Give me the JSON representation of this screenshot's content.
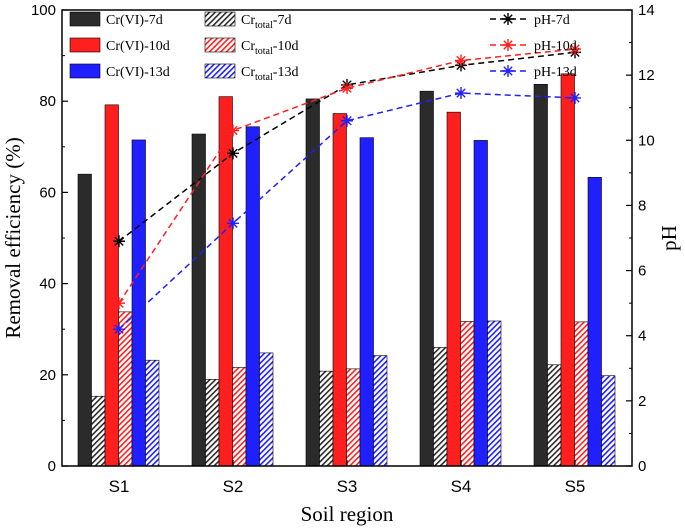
{
  "chart_data": {
    "type": "bar",
    "title": "",
    "xlabel": "Soil region",
    "ylabel": "Removal efficiency (%)",
    "y2label": "pH",
    "ylim": [
      0,
      100
    ],
    "y2lim": [
      0,
      14
    ],
    "yticks": [
      "0",
      "20",
      "40",
      "60",
      "80",
      "100"
    ],
    "y2ticks": [
      "0",
      "2",
      "4",
      "6",
      "8",
      "10",
      "12",
      "14"
    ],
    "categories": [
      "S1",
      "S2",
      "S3",
      "S4",
      "S5"
    ],
    "bar_series": [
      {
        "name": "Cr(VI)-7d",
        "label_main": "Cr(VI)-7d",
        "label_sub": "",
        "label_tail": "",
        "color": "#2b2b2b",
        "hatch": false,
        "values": [
          64,
          72.8,
          80.5,
          82.2,
          83.7
        ]
      },
      {
        "name": "Cr(VI)-10d",
        "label_main": "Cr(VI)-10d",
        "label_sub": "",
        "label_tail": "",
        "color": "#ff1f1f",
        "hatch": false,
        "values": [
          79.2,
          81,
          77.3,
          77.6,
          86
        ]
      },
      {
        "name": "Cr(VI)-13d",
        "label_main": "Cr(VI)-13d",
        "label_sub": "",
        "label_tail": "",
        "color": "#1f1fff",
        "hatch": false,
        "values": [
          71.5,
          74.4,
          72,
          71.4,
          63.3
        ]
      },
      {
        "name": "Crtotal-7d",
        "label_main": "Cr",
        "label_sub": "total",
        "label_tail": "-7d",
        "color": "#2b2b2b",
        "hatch": true,
        "values": [
          15.3,
          19,
          20.8,
          26,
          22.2
        ]
      },
      {
        "name": "Crtotal-10d",
        "label_main": "Cr",
        "label_sub": "total",
        "label_tail": "-10d",
        "color": "#ff1f1f",
        "hatch": true,
        "values": [
          33.8,
          21.6,
          21.3,
          31.7,
          31.6
        ]
      },
      {
        "name": "Crtotal-13d",
        "label_main": "Cr",
        "label_sub": "total",
        "label_tail": "-13d",
        "color": "#1f1fff",
        "hatch": true,
        "values": [
          23.2,
          24.8,
          24.2,
          31.8,
          19.8
        ]
      }
    ],
    "line_series": [
      {
        "name": "pH-7d",
        "color": "#000000",
        "axis": "right",
        "values": [
          6.9,
          9.6,
          11.7,
          12.3,
          12.7
        ]
      },
      {
        "name": "pH-10d",
        "color": "#ff1f1f",
        "axis": "right",
        "values": [
          5,
          10.3,
          11.6,
          12.45,
          12.8
        ]
      },
      {
        "name": "pH-13d",
        "color": "#1f1fff",
        "axis": "right",
        "values": [
          4.2,
          7.45,
          10.6,
          11.45,
          11.3
        ]
      }
    ],
    "legend_position": "top-left (inside plot, 3 columns)"
  }
}
